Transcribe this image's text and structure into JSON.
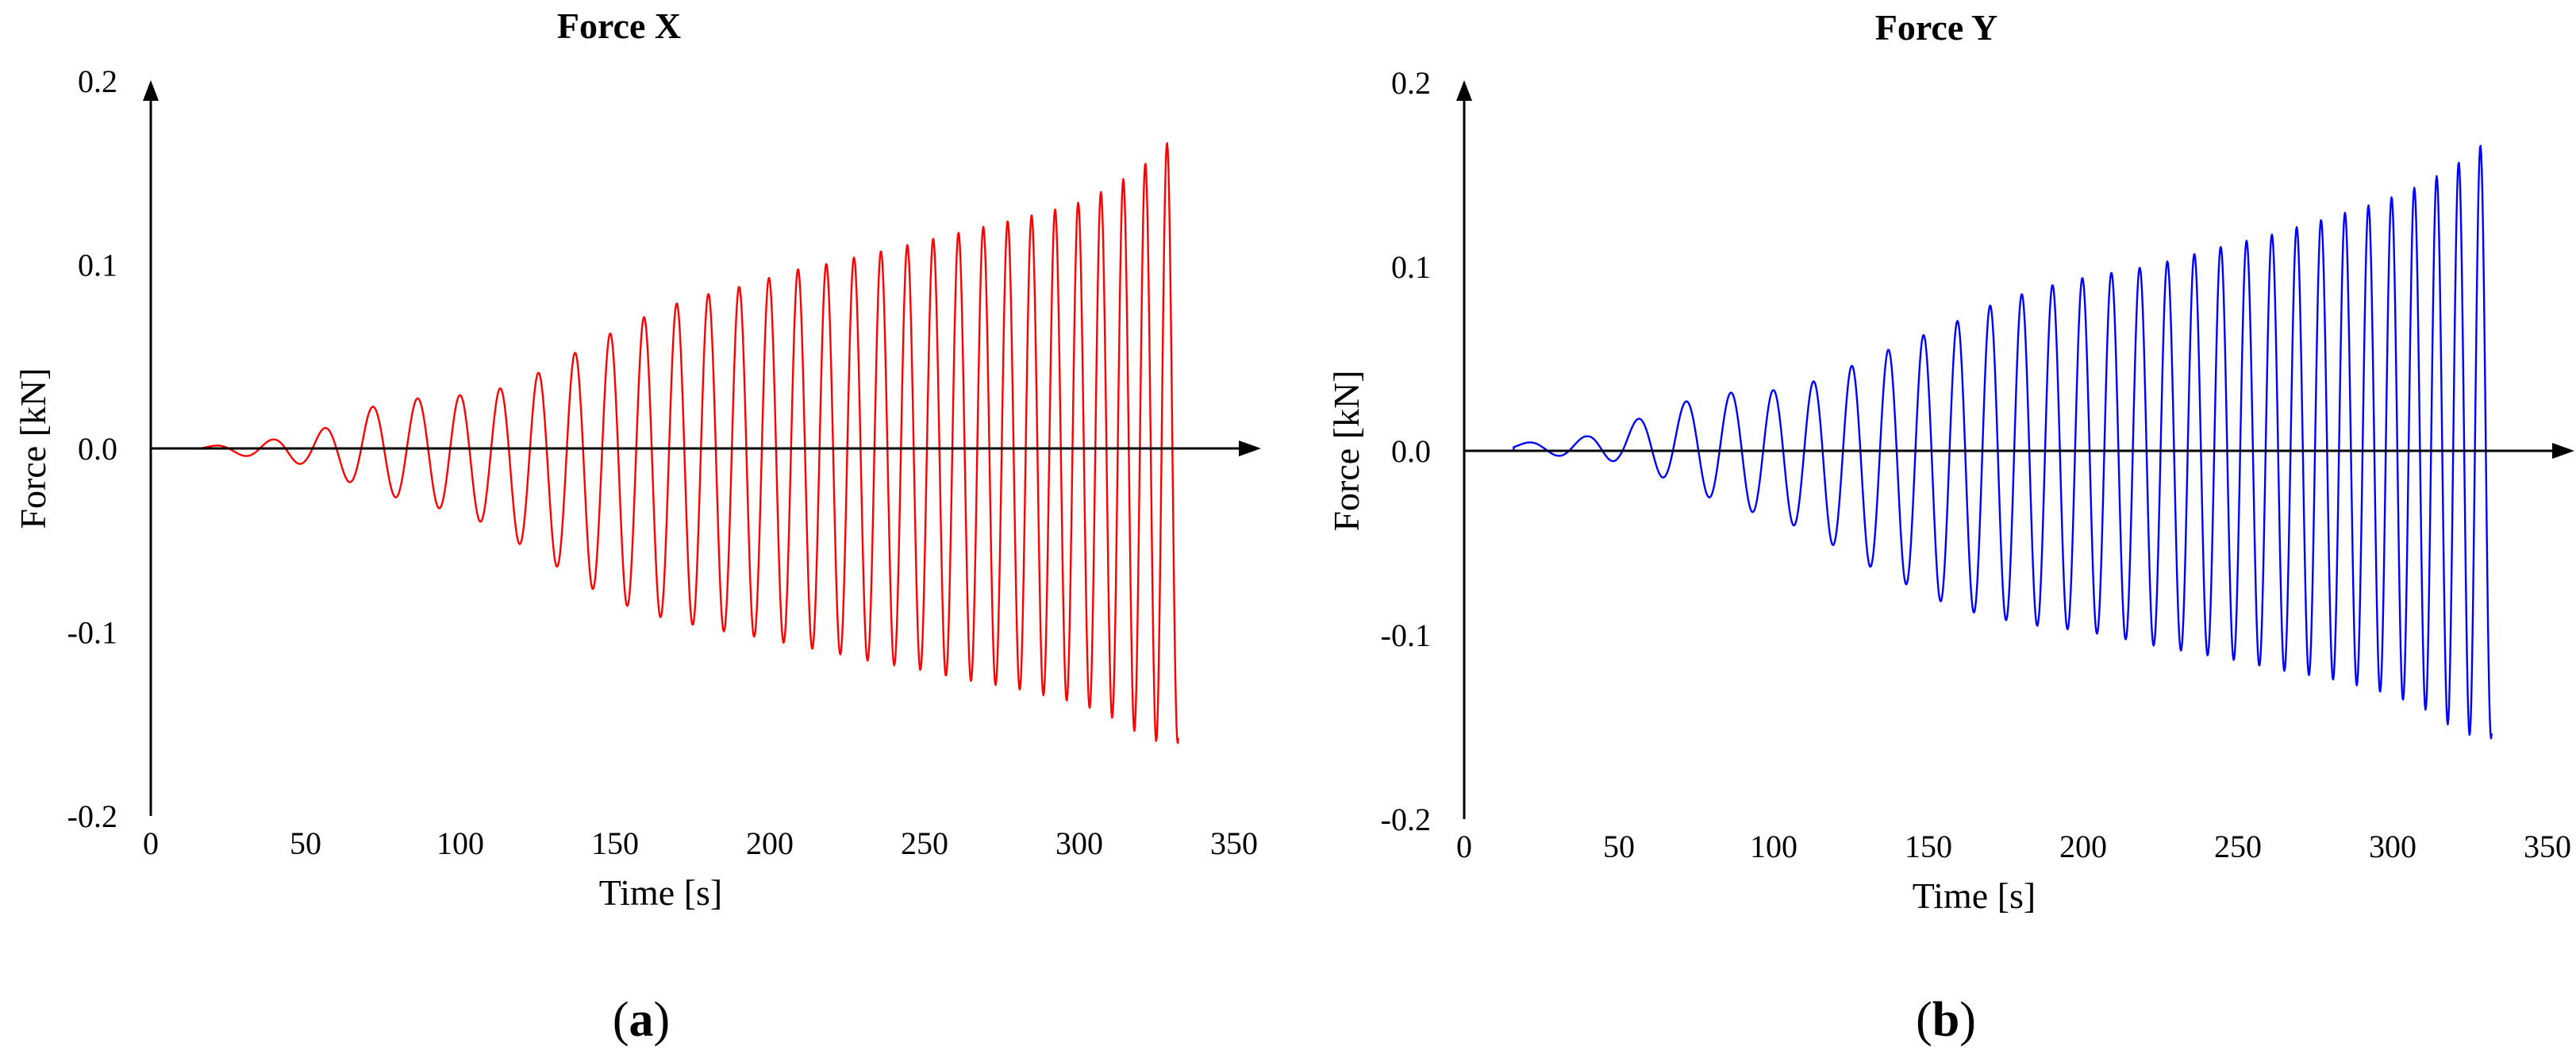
{
  "chart_data": [
    {
      "type": "line",
      "panel_label": "(a)",
      "panel_letter": "a",
      "title": "Force X",
      "xlabel": "Time [s]",
      "ylabel": "Force [kN]",
      "xlim": [
        0,
        350
      ],
      "ylim": [
        -0.2,
        0.2
      ],
      "x_ticks": [
        0,
        50,
        100,
        150,
        200,
        250,
        300,
        350
      ],
      "x_tick_labels": [
        "0",
        "50",
        "100",
        "150",
        "200",
        "250",
        "300",
        "350"
      ],
      "y_ticks": [
        -0.2,
        -0.1,
        0.0,
        0.1,
        0.2
      ],
      "y_tick_labels": [
        "-0.2",
        "-0.1",
        "0.0",
        "0.1",
        "0.2"
      ],
      "grid": false,
      "color": "#ff0000",
      "series": [
        {
          "signal_start_s": 16,
          "signal_end_s": 332,
          "envelope": {
            "t": [
              16,
              25,
              40,
              50,
              60,
              70,
              80,
              90,
              100,
              110,
              120,
              130,
              140,
              150,
              160,
              170,
              180,
              190,
              200,
              210,
              220,
              230,
              240,
              250,
              260,
              270,
              280,
              290,
              300,
              310,
              320,
              330,
              332
            ],
            "upper": [
              0.001,
              0.002,
              0.005,
              0.008,
              0.013,
              0.022,
              0.026,
              0.028,
              0.029,
              0.031,
              0.037,
              0.045,
              0.055,
              0.064,
              0.072,
              0.079,
              0.084,
              0.088,
              0.093,
              0.098,
              0.101,
              0.105,
              0.109,
              0.113,
              0.117,
              0.121,
              0.125,
              0.129,
              0.134,
              0.142,
              0.153,
              0.169,
              0.148
            ],
            "lower": [
              -0.001,
              -0.003,
              -0.006,
              -0.009,
              -0.015,
              -0.023,
              -0.027,
              -0.031,
              -0.036,
              -0.042,
              -0.053,
              -0.063,
              -0.074,
              -0.083,
              -0.09,
              -0.094,
              -0.098,
              -0.101,
              -0.104,
              -0.108,
              -0.111,
              -0.115,
              -0.118,
              -0.121,
              -0.125,
              -0.128,
              -0.131,
              -0.135,
              -0.139,
              -0.146,
              -0.156,
              -0.163,
              -0.16
            ]
          }
        }
      ]
    },
    {
      "type": "line",
      "panel_label": "(b)",
      "panel_letter": "b",
      "title": "Force Y",
      "xlabel": "Time [s]",
      "ylabel": "Force [kN]",
      "xlim": [
        0,
        350
      ],
      "ylim": [
        -0.2,
        0.2
      ],
      "x_ticks": [
        0,
        50,
        100,
        150,
        200,
        250,
        300,
        350
      ],
      "x_tick_labels": [
        "0",
        "50",
        "100",
        "150",
        "200",
        "250",
        "300",
        "350"
      ],
      "y_ticks": [
        -0.2,
        -0.1,
        0.0,
        0.1,
        0.2
      ],
      "y_tick_labels": [
        "-0.2",
        "-0.1",
        "0.0",
        "0.1",
        "0.2"
      ],
      "grid": false,
      "color": "#0000ff",
      "series": [
        {
          "signal_start_s": 16,
          "signal_end_s": 332,
          "envelope": {
            "t": [
              16,
              25,
              40,
              50,
              60,
              70,
              80,
              90,
              100,
              110,
              120,
              130,
              140,
              150,
              160,
              170,
              180,
              190,
              200,
              210,
              220,
              230,
              240,
              250,
              260,
              270,
              280,
              290,
              300,
              310,
              320,
              330,
              332
            ],
            "upper": [
              0.004,
              0.005,
              0.008,
              0.013,
              0.02,
              0.026,
              0.031,
              0.032,
              0.033,
              0.036,
              0.042,
              0.05,
              0.057,
              0.064,
              0.071,
              0.079,
              0.085,
              0.09,
              0.094,
              0.097,
              0.1,
              0.104,
              0.109,
              0.113,
              0.117,
              0.122,
              0.127,
              0.132,
              0.138,
              0.145,
              0.155,
              0.168,
              0.16
            ],
            "lower": [
              0.0,
              -0.002,
              -0.004,
              -0.006,
              -0.012,
              -0.018,
              -0.026,
              -0.032,
              -0.036,
              -0.043,
              -0.052,
              -0.062,
              -0.07,
              -0.079,
              -0.086,
              -0.09,
              -0.094,
              -0.096,
              -0.098,
              -0.101,
              -0.105,
              -0.108,
              -0.111,
              -0.114,
              -0.118,
              -0.121,
              -0.124,
              -0.128,
              -0.133,
              -0.14,
              -0.151,
              -0.158,
              -0.156
            ]
          }
        }
      ]
    }
  ]
}
